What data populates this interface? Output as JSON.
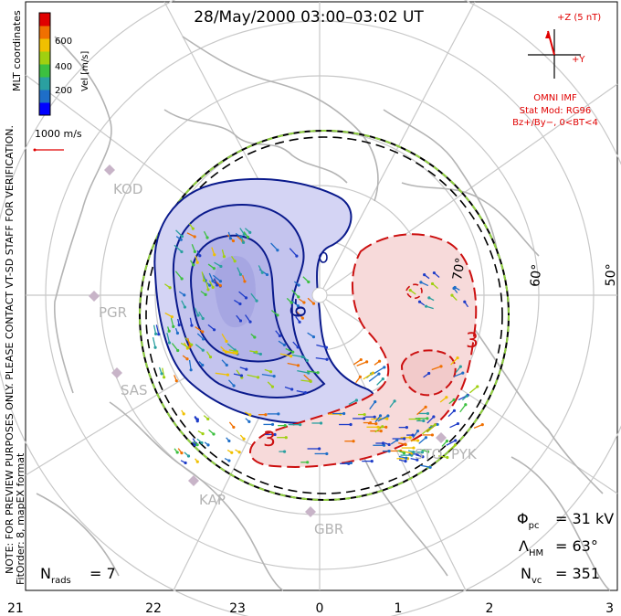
{
  "title": "28/May/2000 03:00–03:02 UT",
  "colorbar": {
    "label": "Vel [m/s]",
    "tick_labels": [
      "600",
      "400",
      "200"
    ],
    "colors": [
      "#0000ff",
      "#1e6ec8",
      "#2aa0a0",
      "#3cc040",
      "#a0d010",
      "#f0c000",
      "#f07000",
      "#e00000"
    ]
  },
  "side_notes": {
    "coords": "MLT coordinates",
    "preview": "NOTE: FOR PREVIEW PURPOSES ONLY. PLEASE CONTACT VT-SD STAFF FOR VERIFICATION.",
    "fit": "FitOrder: 8, mapEX format"
  },
  "scale_vector_label": "1000 m/s",
  "imf": {
    "z_label": "+Z (5 nT)",
    "y_label": "+Y",
    "source": "OMNI IMF",
    "model": "Stat Mod: RG96",
    "condition": "Bz+/By−, 0<BT<4",
    "color": "#e00000"
  },
  "stations": [
    "KOD",
    "PGR",
    "SAS",
    "KAP",
    "GBR",
    "STO",
    "PYK"
  ],
  "contour_labels": [
    "-9",
    "3",
    "3"
  ],
  "lat_labels": [
    "70°",
    "60°",
    "50°"
  ],
  "stats": {
    "phi_sym": "Φ",
    "phi_sub": "pc",
    "phi_val": "= 31 kV",
    "lambda_sym": "Λ",
    "lambda_sub": "HM",
    "lambda_val": "= 63°",
    "nvc_sym": "N",
    "nvc_sub": "vc",
    "nvc_val": "= 351",
    "nrads_sym": "N",
    "nrads_sub": "rads",
    "nrads_val": "= 7"
  },
  "mlt_ticks": [
    "21",
    "22",
    "23",
    "0",
    "1",
    "2",
    "3"
  ],
  "colors": {
    "negative_cell_fill": "#c8c8f0",
    "negative_contour": "#0a1a8c",
    "positive_cell_fill": "#f5d6d6",
    "positive_contour": "#cc1010",
    "coast": "#b4b4b4",
    "hm_boundary_dash": "#90d040"
  }
}
